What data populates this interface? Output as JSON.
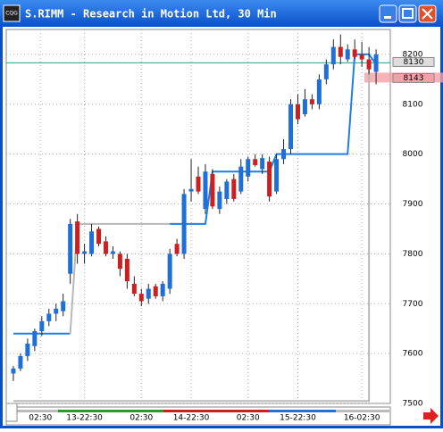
{
  "window": {
    "title": "S.RIMM - Research in Motion Ltd, 30 Min",
    "icon": "CQG"
  },
  "chart_data": {
    "type": "candlestick",
    "open": [
      7560,
      7570,
      7595,
      7615,
      7645,
      7665,
      7680,
      7685,
      7760,
      7865,
      7800,
      7800,
      7850,
      7825,
      7800,
      7800,
      7790,
      7740,
      7720,
      7710,
      7735,
      7715,
      7730,
      7820,
      7800,
      7925,
      7955,
      7890,
      7960,
      7890,
      7910,
      7950,
      7925,
      7955,
      7990,
      7970,
      7985,
      7925,
      7990,
      8010,
      8100,
      8080,
      8110,
      8100,
      8150,
      8180,
      8215,
      8190,
      8210,
      8200,
      8190,
      8165
    ],
    "high": [
      7575,
      7600,
      7630,
      7650,
      7675,
      7690,
      7700,
      7720,
      7870,
      7880,
      7820,
      7860,
      7855,
      7835,
      7815,
      7805,
      7800,
      7755,
      7730,
      7740,
      7740,
      7745,
      7810,
      7830,
      7930,
      7990,
      7975,
      7980,
      7970,
      7935,
      7950,
      7960,
      7990,
      7995,
      8000,
      8000,
      7995,
      8000,
      8030,
      8110,
      8120,
      8130,
      8120,
      8160,
      8190,
      8230,
      8240,
      8220,
      8230,
      8225,
      8215,
      8210
    ],
    "low": [
      7545,
      7565,
      7585,
      7605,
      7635,
      7655,
      7665,
      7675,
      7740,
      7780,
      7780,
      7795,
      7815,
      7795,
      7790,
      7755,
      7730,
      7715,
      7695,
      7700,
      7710,
      7705,
      7720,
      7795,
      7790,
      7905,
      7920,
      7880,
      7890,
      7880,
      7900,
      7905,
      7920,
      7945,
      7975,
      7960,
      7905,
      7920,
      7980,
      8000,
      8060,
      8075,
      8090,
      8090,
      8140,
      8170,
      8180,
      8185,
      8190,
      8175,
      8160,
      8140
    ],
    "close": [
      7570,
      7595,
      7620,
      7645,
      7665,
      7680,
      7690,
      7705,
      7860,
      7800,
      7805,
      7845,
      7820,
      7800,
      7805,
      7770,
      7745,
      7720,
      7705,
      7730,
      7715,
      7740,
      7800,
      7800,
      7920,
      7930,
      7925,
      7965,
      7895,
      7925,
      7945,
      7910,
      7975,
      7990,
      7978,
      7992,
      7915,
      7990,
      8010,
      8100,
      8070,
      8110,
      8100,
      8150,
      8180,
      8215,
      8195,
      8210,
      8195,
      8190,
      8170,
      8200
    ],
    "up_color": "#1e6fd9",
    "down_color": "#cc2020",
    "lines": [
      {
        "color": "#1e7fe0",
        "x": [
          0,
          8
        ],
        "values": [
          7640,
          7640
        ]
      },
      {
        "color": "#b8b8b8",
        "x": [
          8,
          9,
          22
        ],
        "values": [
          7640,
          7860,
          7860
        ]
      },
      {
        "color": "#1e7fe0",
        "x": [
          22,
          27,
          28,
          36,
          37,
          47,
          48,
          50,
          51
        ],
        "values": [
          7860,
          7860,
          7965,
          7965,
          8000,
          8000,
          8200,
          8200,
          8180
        ]
      },
      {
        "color": "#b8b8b8",
        "x": [
          0,
          50,
          50
        ],
        "values": [
          7505,
          7505,
          8180
        ]
      }
    ],
    "hline": {
      "value": 8183,
      "color": "#2a9d8f"
    },
    "price_labels": [
      "8130",
      "8143"
    ],
    "xlim": [
      -1,
      53
    ],
    "ylim": [
      7500,
      8250
    ],
    "xticks": [
      {
        "value": 3.8,
        "label": "02:30"
      },
      {
        "value": 10,
        "label": "13-22:30"
      },
      {
        "value": 18,
        "label": "02:30"
      },
      {
        "value": 25,
        "label": "14-22:30"
      },
      {
        "value": 33,
        "label": "02:30"
      },
      {
        "value": 40,
        "label": "15-22:30"
      },
      {
        "value": 49,
        "label": "16-02:30"
      }
    ],
    "yticks": [
      7500,
      7600,
      7700,
      7800,
      7900,
      8000,
      8100,
      8200
    ],
    "grid": true
  }
}
